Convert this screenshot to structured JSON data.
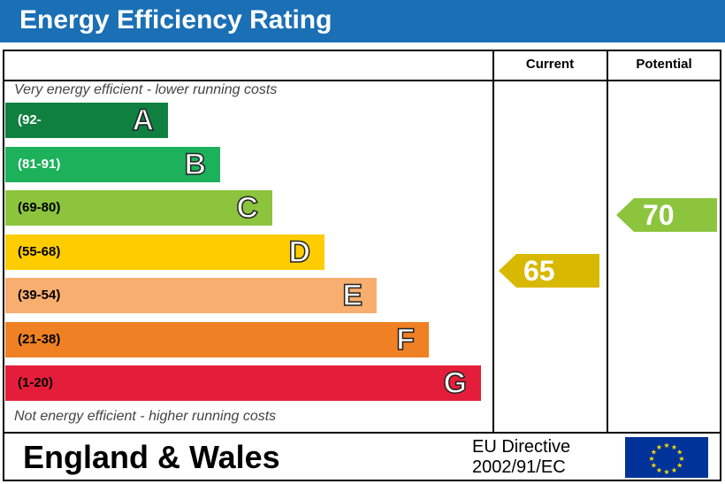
{
  "title": "Energy Efficiency Rating",
  "columns": {
    "current": "Current",
    "potential": "Potential"
  },
  "top_note": "Very energy efficient - lower running costs",
  "bottom_note": "Not energy efficient - higher running costs",
  "footer": {
    "region": "England & Wales",
    "directive_line1": "EU Directive",
    "directive_line2": "2002/91/EC"
  },
  "colors": {
    "title_bar": "#1a6fb5",
    "eu_flag": "#003399",
    "eu_stars": "#ffdd00"
  },
  "chart_data": {
    "type": "bar",
    "categories": [
      "A",
      "B",
      "C",
      "D",
      "E",
      "F",
      "G"
    ],
    "ranges": [
      "(92-",
      "(81-91)",
      "(69-80)",
      "(55-68)",
      "(39-54)",
      "(21-38)",
      "(1-20)"
    ],
    "colors": [
      "#108040",
      "#1cb15a",
      "#8cc43e",
      "#ffcc00",
      "#f7ae6f",
      "#ef8023",
      "#e41e3a"
    ],
    "current": {
      "value": 65,
      "band": "D",
      "color": "#d8b800"
    },
    "potential": {
      "value": 70,
      "band": "C",
      "color": "#8cc43e"
    }
  }
}
